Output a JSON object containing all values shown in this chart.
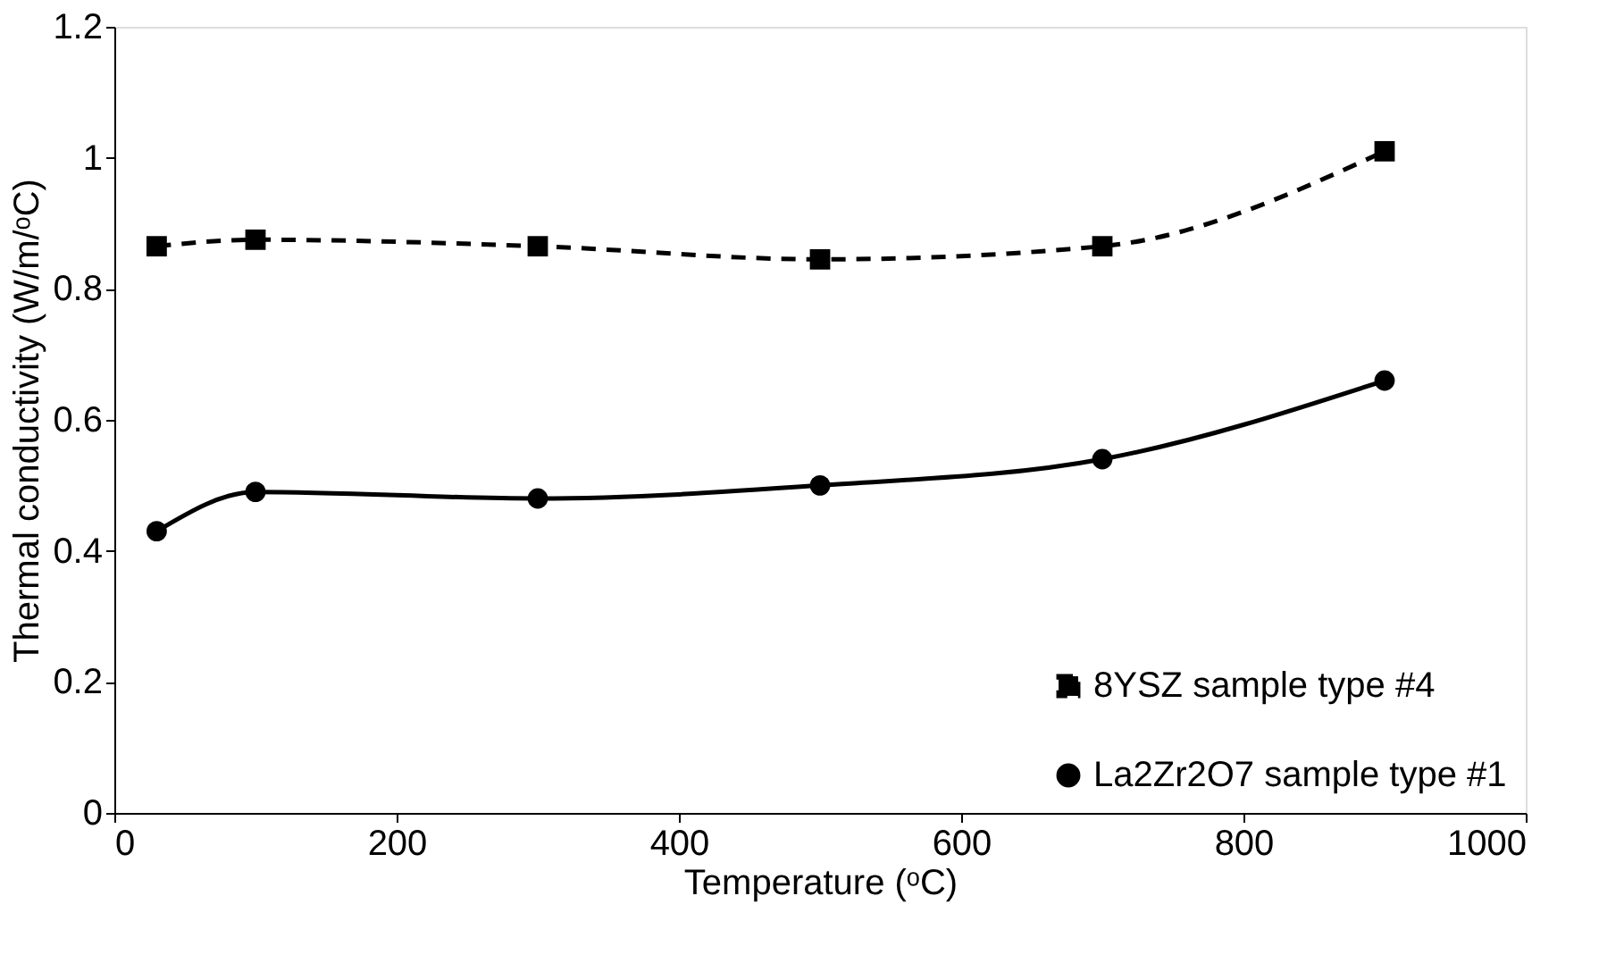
{
  "chart_data": {
    "type": "line",
    "xlabel": "Temperature (ᵒC)",
    "ylabel": "Thermal conductivity (W/m/ᵒC)",
    "xlim": [
      0,
      1000
    ],
    "xticks": [
      0,
      200,
      400,
      600,
      800,
      1000
    ],
    "ylim": [
      0,
      1.2
    ],
    "yticks": [
      0,
      0.2,
      0.4,
      0.6,
      0.8,
      1,
      1.2
    ],
    "grid": false,
    "legend": "bottom right",
    "series": [
      {
        "name": "8YSZ sample type #4",
        "color": "#000000",
        "line_style": "dashed",
        "marker": "square",
        "x": [
          30,
          100,
          300,
          500,
          700,
          900
        ],
        "values": [
          0.865,
          0.875,
          0.865,
          0.845,
          0.865,
          1.01
        ]
      },
      {
        "name": "La2Zr2O7 sample type #1",
        "color": "#000000",
        "line_style": "solid",
        "marker": "circle",
        "x": [
          30,
          100,
          300,
          500,
          700,
          900
        ],
        "values": [
          0.43,
          0.49,
          0.48,
          0.5,
          0.54,
          0.66
        ]
      }
    ]
  }
}
